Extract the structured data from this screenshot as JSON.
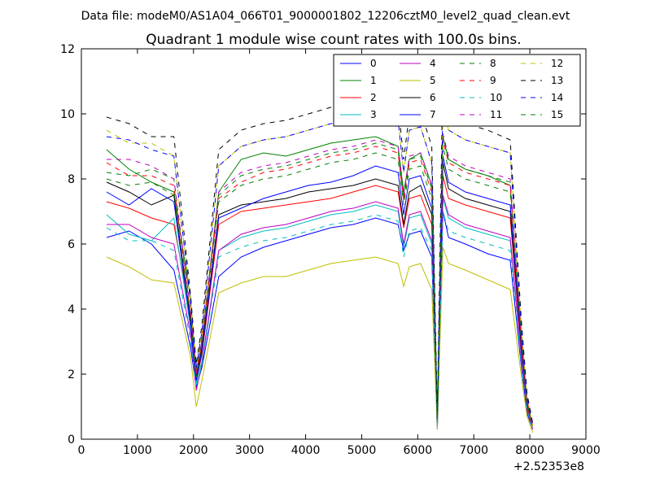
{
  "chart_data": {
    "type": "line",
    "suptitle": "Data file: modeM0/AS1A04_066T01_9000001802_12206cztM0_level2_quad_clean.evt",
    "title": "Quadrant 1 module wise count rates with 100.0s bins.",
    "xlabel": "",
    "ylabel": "",
    "xlim": [
      0,
      9000
    ],
    "ylim": [
      0,
      12
    ],
    "x_offset_label": "+2.52353e8",
    "x_ticks": [
      0,
      1000,
      2000,
      3000,
      4000,
      5000,
      6000,
      7000,
      8000,
      9000
    ],
    "y_ticks": [
      0,
      2,
      4,
      6,
      8,
      10,
      12
    ],
    "grid": false,
    "legend_position": "top-right",
    "x": [
      450,
      850,
      1250,
      1650,
      1950,
      2050,
      2150,
      2450,
      2850,
      3250,
      3650,
      4050,
      4450,
      4850,
      5250,
      5650,
      5750,
      5850,
      6050,
      6250,
      6350,
      6450,
      6550,
      6850,
      7250,
      7650,
      7850,
      7950,
      8050
    ],
    "series": [
      {
        "name": "0",
        "color": "#0000ff",
        "dash": "solid",
        "values": [
          6.2,
          6.4,
          6.0,
          5.2,
          2.8,
          1.6,
          2.2,
          5.0,
          5.6,
          5.9,
          6.1,
          6.3,
          6.5,
          6.6,
          6.8,
          6.6,
          5.8,
          6.3,
          6.4,
          5.6,
          0.3,
          7.0,
          6.2,
          6.0,
          5.7,
          5.5,
          2.2,
          0.8,
          0.3
        ]
      },
      {
        "name": "1",
        "color": "#008000",
        "dash": "solid",
        "values": [
          8.9,
          8.3,
          7.9,
          7.6,
          4.3,
          2.0,
          3.0,
          7.6,
          8.6,
          8.8,
          8.7,
          8.9,
          9.1,
          9.2,
          9.3,
          9.0,
          7.6,
          8.6,
          8.8,
          7.8,
          0.6,
          9.3,
          8.6,
          8.3,
          8.1,
          7.8,
          3.1,
          1.2,
          0.4
        ]
      },
      {
        "name": "2",
        "color": "#ff0000",
        "dash": "solid",
        "values": [
          7.3,
          7.1,
          6.8,
          6.6,
          3.8,
          1.8,
          2.6,
          6.6,
          7.0,
          7.1,
          7.2,
          7.3,
          7.4,
          7.6,
          7.8,
          7.6,
          6.5,
          7.4,
          7.5,
          6.6,
          0.5,
          8.1,
          7.4,
          7.2,
          7.0,
          6.8,
          2.7,
          1.0,
          0.3
        ]
      },
      {
        "name": "3",
        "color": "#00bfbf",
        "dash": "solid",
        "values": [
          6.9,
          6.3,
          6.1,
          6.8,
          3.4,
          1.7,
          2.4,
          5.8,
          6.2,
          6.4,
          6.5,
          6.7,
          6.9,
          7.0,
          7.2,
          7.0,
          5.9,
          6.8,
          6.9,
          6.0,
          0.4,
          7.4,
          6.8,
          6.5,
          6.3,
          6.1,
          2.5,
          0.9,
          0.3
        ]
      },
      {
        "name": "4",
        "color": "#bf00bf",
        "dash": "solid",
        "values": [
          6.6,
          6.6,
          6.2,
          6.0,
          3.2,
          1.5,
          2.3,
          5.8,
          6.3,
          6.5,
          6.6,
          6.8,
          7.0,
          7.1,
          7.3,
          7.1,
          6.0,
          6.9,
          7.0,
          6.1,
          0.4,
          7.5,
          6.9,
          6.6,
          6.4,
          6.2,
          2.5,
          0.9,
          0.3
        ]
      },
      {
        "name": "5",
        "color": "#bfbf00",
        "dash": "solid",
        "values": [
          5.6,
          5.3,
          4.9,
          4.8,
          2.5,
          1.0,
          1.8,
          4.5,
          4.8,
          5.0,
          5.0,
          5.2,
          5.4,
          5.5,
          5.6,
          5.4,
          4.7,
          5.3,
          5.4,
          4.6,
          0.3,
          5.9,
          5.4,
          5.2,
          4.9,
          4.6,
          1.9,
          0.7,
          0.2
        ]
      },
      {
        "name": "6",
        "color": "#000000",
        "dash": "solid",
        "values": [
          7.9,
          7.6,
          7.2,
          7.5,
          3.6,
          1.9,
          2.8,
          6.9,
          7.2,
          7.3,
          7.4,
          7.6,
          7.7,
          7.8,
          8.0,
          7.8,
          6.6,
          7.6,
          7.8,
          6.9,
          0.5,
          8.5,
          7.7,
          7.4,
          7.2,
          7.0,
          2.8,
          1.1,
          0.4
        ]
      },
      {
        "name": "7",
        "color": "#0000ff",
        "dash": "solid",
        "values": [
          7.6,
          7.2,
          7.7,
          7.3,
          3.5,
          1.8,
          2.7,
          6.8,
          7.1,
          7.4,
          7.6,
          7.8,
          7.9,
          8.1,
          8.4,
          8.2,
          6.9,
          8.0,
          8.1,
          7.1,
          0.5,
          8.7,
          7.9,
          7.6,
          7.4,
          7.2,
          2.9,
          1.1,
          0.4
        ]
      },
      {
        "name": "8",
        "color": "#008000",
        "dash": "dashed",
        "values": [
          8.2,
          8.1,
          8.3,
          8.0,
          3.9,
          2.1,
          3.1,
          7.5,
          8.1,
          8.3,
          8.4,
          8.6,
          8.8,
          8.9,
          9.1,
          8.9,
          7.4,
          8.6,
          8.7,
          7.7,
          0.6,
          9.3,
          8.6,
          8.3,
          8.1,
          7.9,
          3.1,
          1.2,
          0.4
        ]
      },
      {
        "name": "9",
        "color": "#ff0000",
        "dash": "dashed",
        "values": [
          8.5,
          8.1,
          8.1,
          7.8,
          3.8,
          2.0,
          3.0,
          7.4,
          7.9,
          8.2,
          8.3,
          8.5,
          8.7,
          8.8,
          9.0,
          8.8,
          7.3,
          8.5,
          8.6,
          7.6,
          0.6,
          9.2,
          8.5,
          8.2,
          8.0,
          7.8,
          3.0,
          1.2,
          0.4
        ]
      },
      {
        "name": "10",
        "color": "#00bfbf",
        "dash": "dashed",
        "values": [
          6.5,
          6.1,
          6.1,
          5.8,
          3.0,
          1.6,
          2.3,
          5.6,
          5.9,
          6.1,
          6.2,
          6.4,
          6.6,
          6.7,
          6.9,
          6.7,
          5.6,
          6.4,
          6.5,
          5.8,
          0.4,
          7.0,
          6.4,
          6.2,
          6.0,
          5.8,
          2.3,
          0.9,
          0.3
        ]
      },
      {
        "name": "11",
        "color": "#bf00bf",
        "dash": "dashed",
        "values": [
          8.6,
          8.6,
          8.4,
          8.0,
          3.9,
          2.0,
          3.0,
          7.6,
          8.2,
          8.4,
          8.5,
          8.7,
          8.9,
          9.0,
          9.2,
          9.0,
          7.5,
          8.7,
          8.8,
          7.8,
          0.6,
          9.4,
          8.7,
          8.4,
          8.2,
          8.0,
          3.1,
          1.2,
          0.4
        ]
      },
      {
        "name": "12",
        "color": "#bfbf00",
        "dash": "dashed",
        "values": [
          9.5,
          9.1,
          9.1,
          8.7,
          4.2,
          2.2,
          3.3,
          8.4,
          9.0,
          9.2,
          9.3,
          9.5,
          9.7,
          9.8,
          10.0,
          9.8,
          8.2,
          9.5,
          9.6,
          8.5,
          0.7,
          10.3,
          9.5,
          9.2,
          9.0,
          8.8,
          3.4,
          1.3,
          0.4
        ]
      },
      {
        "name": "13",
        "color": "#000000",
        "dash": "dashed",
        "values": [
          9.9,
          9.7,
          9.3,
          9.3,
          4.4,
          2.3,
          3.5,
          8.9,
          9.5,
          9.7,
          9.8,
          10.0,
          10.2,
          10.3,
          10.5,
          10.3,
          8.6,
          10.0,
          10.1,
          9.0,
          0.7,
          11.5,
          10.1,
          9.7,
          9.5,
          9.2,
          3.6,
          1.4,
          0.5
        ]
      },
      {
        "name": "14",
        "color": "#0000ff",
        "dash": "dashed",
        "values": [
          9.3,
          9.2,
          8.9,
          8.7,
          4.2,
          2.2,
          3.3,
          8.4,
          9.0,
          9.2,
          9.3,
          9.5,
          9.7,
          9.8,
          10.0,
          9.8,
          8.2,
          9.5,
          9.6,
          8.5,
          0.7,
          10.3,
          9.5,
          9.2,
          9.0,
          8.8,
          3.4,
          1.3,
          0.4
        ]
      },
      {
        "name": "15",
        "color": "#008000",
        "dash": "dashed",
        "values": [
          8.0,
          7.8,
          7.9,
          7.5,
          3.7,
          1.9,
          2.9,
          7.3,
          7.8,
          8.0,
          8.1,
          8.3,
          8.5,
          8.6,
          8.8,
          8.6,
          7.2,
          8.3,
          8.4,
          7.4,
          0.6,
          9.0,
          8.3,
          8.0,
          7.8,
          7.6,
          3.0,
          1.1,
          0.4
        ]
      }
    ]
  }
}
